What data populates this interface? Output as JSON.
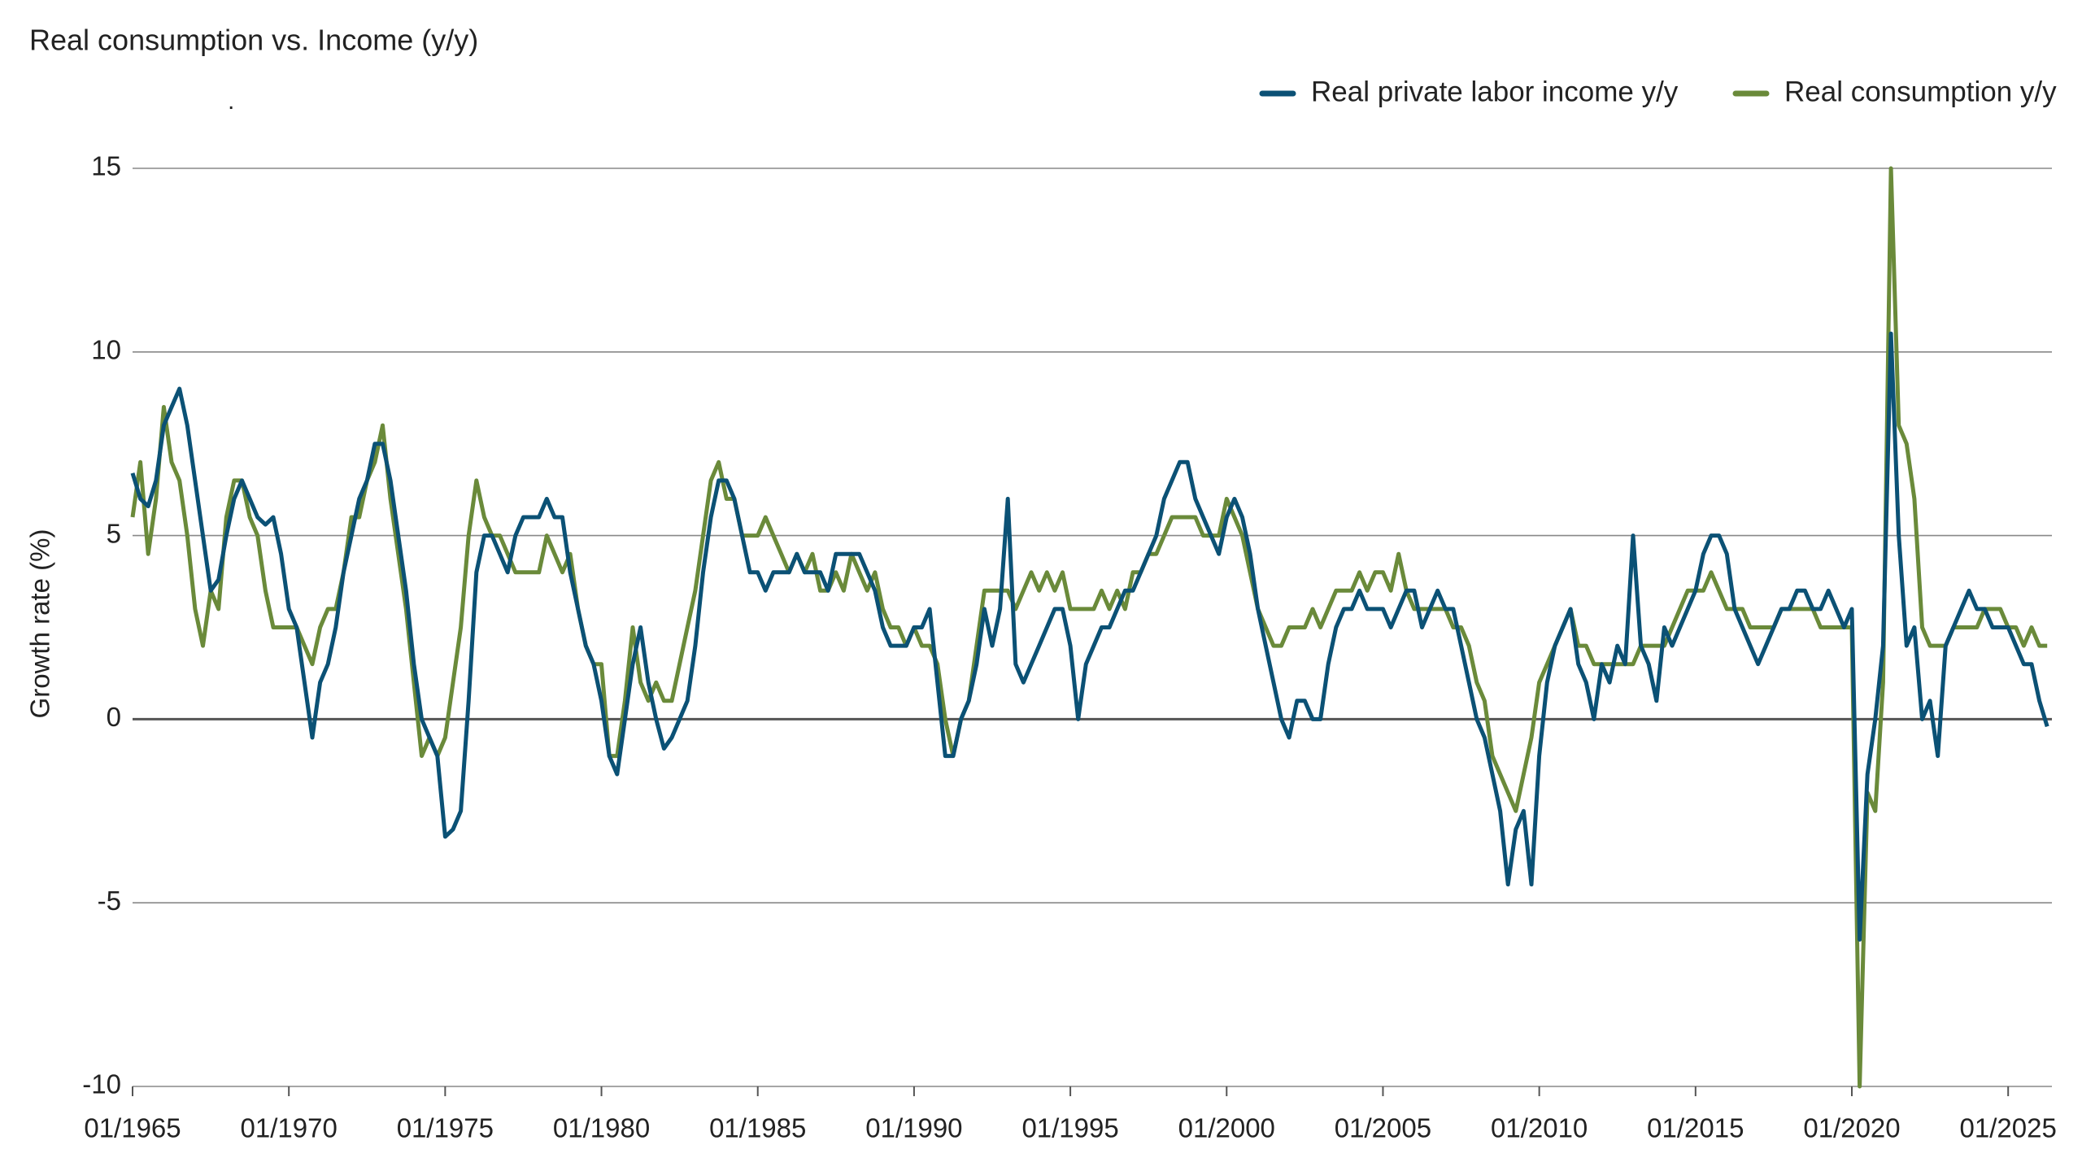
{
  "chart_data": {
    "type": "line",
    "title": "Real consumption vs. Income (y/y)",
    "subtitle": ".",
    "ylabel": "Growth rate (%)",
    "legend": "top-right",
    "grid": true,
    "xlim": [
      1965,
      2026.4
    ],
    "ylim": [
      -10,
      15
    ],
    "yticks": [
      15,
      10,
      5,
      0,
      -5,
      -10
    ],
    "xticks": [
      {
        "value": 1965,
        "label": "01/1965"
      },
      {
        "value": 1970,
        "label": "01/1970"
      },
      {
        "value": 1975,
        "label": "01/1975"
      },
      {
        "value": 1980,
        "label": "01/1980"
      },
      {
        "value": 1985,
        "label": "01/1985"
      },
      {
        "value": 1990,
        "label": "01/1990"
      },
      {
        "value": 1995,
        "label": "01/1995"
      },
      {
        "value": 2000,
        "label": "01/2000"
      },
      {
        "value": 2005,
        "label": "01/2005"
      },
      {
        "value": 2010,
        "label": "01/2010"
      },
      {
        "value": 2015,
        "label": "01/2015"
      },
      {
        "value": 2020,
        "label": "01/2020"
      },
      {
        "value": 2025,
        "label": "01/2025"
      }
    ],
    "x": [
      1965,
      1965.25,
      1965.5,
      1965.75,
      1966,
      1966.25,
      1966.5,
      1966.75,
      1967,
      1967.25,
      1967.5,
      1967.75,
      1968,
      1968.25,
      1968.5,
      1968.75,
      1969,
      1969.25,
      1969.5,
      1969.75,
      1970,
      1970.25,
      1970.5,
      1970.75,
      1971,
      1971.25,
      1971.5,
      1971.75,
      1972,
      1972.25,
      1972.5,
      1972.75,
      1973,
      1973.25,
      1973.5,
      1973.75,
      1974,
      1974.25,
      1974.5,
      1974.75,
      1975,
      1975.25,
      1975.5,
      1975.75,
      1976,
      1976.25,
      1976.5,
      1976.75,
      1977,
      1977.25,
      1977.5,
      1977.75,
      1978,
      1978.25,
      1978.5,
      1978.75,
      1979,
      1979.25,
      1979.5,
      1979.75,
      1980,
      1980.25,
      1980.5,
      1980.75,
      1981,
      1981.25,
      1981.5,
      1981.75,
      1982,
      1982.25,
      1982.5,
      1982.75,
      1983,
      1983.25,
      1983.5,
      1983.75,
      1984,
      1984.25,
      1984.5,
      1984.75,
      1985,
      1985.25,
      1985.5,
      1985.75,
      1986,
      1986.25,
      1986.5,
      1986.75,
      1987,
      1987.25,
      1987.5,
      1987.75,
      1988,
      1988.25,
      1988.5,
      1988.75,
      1989,
      1989.25,
      1989.5,
      1989.75,
      1990,
      1990.25,
      1990.5,
      1990.75,
      1991,
      1991.25,
      1991.5,
      1991.75,
      1992,
      1992.25,
      1992.5,
      1992.75,
      1993,
      1993.25,
      1993.5,
      1993.75,
      1994,
      1994.25,
      1994.5,
      1994.75,
      1995,
      1995.25,
      1995.5,
      1995.75,
      1996,
      1996.25,
      1996.5,
      1996.75,
      1997,
      1997.25,
      1997.5,
      1997.75,
      1998,
      1998.25,
      1998.5,
      1998.75,
      1999,
      1999.25,
      1999.5,
      1999.75,
      2000,
      2000.25,
      2000.5,
      2000.75,
      2001,
      2001.25,
      2001.5,
      2001.75,
      2002,
      2002.25,
      2002.5,
      2002.75,
      2003,
      2003.25,
      2003.5,
      2003.75,
      2004,
      2004.25,
      2004.5,
      2004.75,
      2005,
      2005.25,
      2005.5,
      2005.75,
      2006,
      2006.25,
      2006.5,
      2006.75,
      2007,
      2007.25,
      2007.5,
      2007.75,
      2008,
      2008.25,
      2008.5,
      2008.75,
      2009,
      2009.25,
      2009.5,
      2009.75,
      2010,
      2010.25,
      2010.5,
      2010.75,
      2011,
      2011.25,
      2011.5,
      2011.75,
      2012,
      2012.25,
      2012.5,
      2012.75,
      2013,
      2013.25,
      2013.5,
      2013.75,
      2014,
      2014.25,
      2014.5,
      2014.75,
      2015,
      2015.25,
      2015.5,
      2015.75,
      2016,
      2016.25,
      2016.5,
      2016.75,
      2017,
      2017.25,
      2017.5,
      2017.75,
      2018,
      2018.25,
      2018.5,
      2018.75,
      2019,
      2019.25,
      2019.5,
      2019.75,
      2020,
      2020.25,
      2020.5,
      2020.75,
      2021,
      2021.25,
      2021.5,
      2021.75,
      2022,
      2022.25,
      2022.5,
      2022.75,
      2023,
      2023.25,
      2023.5,
      2023.75,
      2024,
      2024.25,
      2024.5,
      2024.75,
      2025,
      2025.25,
      2025.5,
      2025.75,
      2026,
      2026.25
    ],
    "series": [
      {
        "name": "Real private labor income y/y",
        "color": "#0b5175",
        "values": [
          6.7,
          6.0,
          5.8,
          6.5,
          8.0,
          8.5,
          9.0,
          8.0,
          6.5,
          5.0,
          3.5,
          3.8,
          5.0,
          6.0,
          6.5,
          6.0,
          5.5,
          5.3,
          5.5,
          4.5,
          3.0,
          2.5,
          1.0,
          -0.5,
          1.0,
          1.5,
          2.5,
          4.0,
          5.0,
          6.0,
          6.5,
          7.5,
          7.5,
          6.5,
          5.0,
          3.5,
          1.5,
          0.0,
          -0.5,
          -1.0,
          -3.2,
          -3.0,
          -2.5,
          0.5,
          4.0,
          5.0,
          5.0,
          4.5,
          4.0,
          5.0,
          5.5,
          5.5,
          5.5,
          6.0,
          5.5,
          5.5,
          4.0,
          3.0,
          2.0,
          1.5,
          0.5,
          -1.0,
          -1.5,
          0.0,
          1.5,
          2.5,
          1.0,
          0.0,
          -0.8,
          -0.5,
          0.0,
          0.5,
          2.0,
          4.0,
          5.5,
          6.5,
          6.5,
          6.0,
          5.0,
          4.0,
          4.0,
          3.5,
          4.0,
          4.0,
          4.0,
          4.5,
          4.0,
          4.0,
          4.0,
          3.5,
          4.5,
          4.5,
          4.5,
          4.5,
          4.0,
          3.5,
          2.5,
          2.0,
          2.0,
          2.0,
          2.5,
          2.5,
          3.0,
          1.0,
          -1.0,
          -1.0,
          0.0,
          0.5,
          1.5,
          3.0,
          2.0,
          3.0,
          6.0,
          1.5,
          1.0,
          1.5,
          2.0,
          2.5,
          3.0,
          3.0,
          2.0,
          0.0,
          1.5,
          2.0,
          2.5,
          2.5,
          3.0,
          3.5,
          3.5,
          4.0,
          4.5,
          5.0,
          6.0,
          6.5,
          7.0,
          7.0,
          6.0,
          5.5,
          5.0,
          4.5,
          5.5,
          6.0,
          5.5,
          4.5,
          3.0,
          2.0,
          1.0,
          0.0,
          -0.5,
          0.5,
          0.5,
          0.0,
          0.0,
          1.5,
          2.5,
          3.0,
          3.0,
          3.5,
          3.0,
          3.0,
          3.0,
          2.5,
          3.0,
          3.5,
          3.5,
          2.5,
          3.0,
          3.5,
          3.0,
          3.0,
          2.0,
          1.0,
          0.0,
          -0.5,
          -1.5,
          -2.5,
          -4.5,
          -3.0,
          -2.5,
          -4.5,
          -1.0,
          1.0,
          2.0,
          2.5,
          3.0,
          1.5,
          1.0,
          0.0,
          1.5,
          1.0,
          2.0,
          1.5,
          5.0,
          2.0,
          1.5,
          0.5,
          2.5,
          2.0,
          2.5,
          3.0,
          3.5,
          4.5,
          5.0,
          5.0,
          4.5,
          3.0,
          2.5,
          2.0,
          1.5,
          2.0,
          2.5,
          3.0,
          3.0,
          3.5,
          3.5,
          3.0,
          3.0,
          3.5,
          3.0,
          2.5,
          3.0,
          -6.0,
          -1.5,
          0.0,
          2.0,
          10.5,
          5.0,
          2.0,
          2.5,
          0.0,
          0.5,
          -1.0,
          2.0,
          2.5,
          3.0,
          3.5,
          3.0,
          3.0,
          2.5,
          2.5,
          2.5,
          2.0,
          1.5,
          1.5,
          0.5,
          -0.2
        ]
      },
      {
        "name": "Real consumption y/y",
        "color": "#6a8a3a",
        "values": [
          5.5,
          7.0,
          4.5,
          6.0,
          8.5,
          7.0,
          6.5,
          5.0,
          3.0,
          2.0,
          3.5,
          3.0,
          5.5,
          6.5,
          6.5,
          5.5,
          5.0,
          3.5,
          2.5,
          2.5,
          2.5,
          2.5,
          2.0,
          1.5,
          2.5,
          3.0,
          3.0,
          4.0,
          5.5,
          5.5,
          6.5,
          7.0,
          8.0,
          6.0,
          4.5,
          3.0,
          1.0,
          -1.0,
          -0.5,
          -1.0,
          -0.5,
          1.0,
          2.5,
          5.0,
          6.5,
          5.5,
          5.0,
          5.0,
          4.5,
          4.0,
          4.0,
          4.0,
          4.0,
          5.0,
          4.5,
          4.0,
          4.5,
          3.0,
          2.0,
          1.5,
          1.5,
          -1.0,
          -1.0,
          0.5,
          2.5,
          1.0,
          0.5,
          1.0,
          0.5,
          0.5,
          1.5,
          2.5,
          3.5,
          5.0,
          6.5,
          7.0,
          6.0,
          6.0,
          5.0,
          5.0,
          5.0,
          5.5,
          5.0,
          4.5,
          4.0,
          4.5,
          4.0,
          4.5,
          3.5,
          3.5,
          4.0,
          3.5,
          4.5,
          4.0,
          3.5,
          4.0,
          3.0,
          2.5,
          2.5,
          2.0,
          2.5,
          2.0,
          2.0,
          1.5,
          0.0,
          -1.0,
          0.0,
          0.5,
          2.0,
          3.5,
          3.5,
          3.5,
          3.5,
          3.0,
          3.5,
          4.0,
          3.5,
          4.0,
          3.5,
          4.0,
          3.0,
          3.0,
          3.0,
          3.0,
          3.5,
          3.0,
          3.5,
          3.0,
          4.0,
          4.0,
          4.5,
          4.5,
          5.0,
          5.5,
          5.5,
          5.5,
          5.5,
          5.0,
          5.0,
          5.0,
          6.0,
          5.5,
          5.0,
          4.0,
          3.0,
          2.5,
          2.0,
          2.0,
          2.5,
          2.5,
          2.5,
          3.0,
          2.5,
          3.0,
          3.5,
          3.5,
          3.5,
          4.0,
          3.5,
          4.0,
          4.0,
          3.5,
          4.5,
          3.5,
          3.0,
          3.0,
          3.0,
          3.0,
          3.0,
          2.5,
          2.5,
          2.0,
          1.0,
          0.5,
          -1.0,
          -1.5,
          -2.0,
          -2.5,
          -1.5,
          -0.5,
          1.0,
          1.5,
          2.0,
          2.5,
          3.0,
          2.0,
          2.0,
          1.5,
          1.5,
          1.5,
          1.5,
          1.5,
          1.5,
          2.0,
          2.0,
          2.0,
          2.0,
          2.5,
          3.0,
          3.5,
          3.5,
          3.5,
          4.0,
          3.5,
          3.0,
          3.0,
          3.0,
          2.5,
          2.5,
          2.5,
          2.5,
          3.0,
          3.0,
          3.0,
          3.0,
          3.0,
          2.5,
          2.5,
          2.5,
          2.5,
          2.5,
          -10.0,
          -2.0,
          -2.5,
          1.0,
          15.0,
          8.0,
          7.5,
          6.0,
          2.5,
          2.0,
          2.0,
          2.0,
          2.5,
          2.5,
          2.5,
          2.5,
          3.0,
          3.0,
          3.0,
          2.5,
          2.5,
          2.0,
          2.5,
          2.0,
          2.0
        ]
      }
    ]
  }
}
